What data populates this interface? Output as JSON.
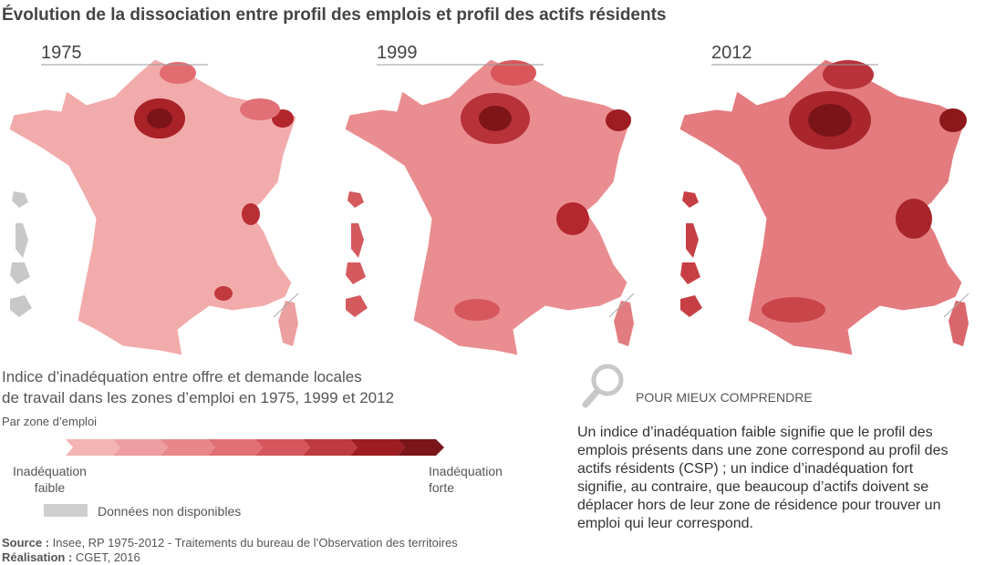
{
  "title": "Évolution de la dissociation entre profil des emplois et profil des actifs résidents",
  "maps": [
    {
      "year": "1975"
    },
    {
      "year": "1999"
    },
    {
      "year": "2012"
    }
  ],
  "legend": {
    "title_lines": [
      "Indice d’inadéquation entre offre et demande locales",
      "de travail dans les zones d’emploi en 1975, 1999 et 2012"
    ],
    "subtitle": "Par zone d’emploi",
    "low_label": [
      "Inadéquation",
      "faible"
    ],
    "high_label": [
      "Inadéquation",
      "forte"
    ],
    "na_label": "Données non disponibles"
  },
  "explainer": {
    "heading": "POUR MIEUX COMPRENDRE",
    "text": "Un indice d’inadéquation faible signifie que le profil des emplois présents dans une zone correspond au profil des actifs résidents (CSP) ; un indice d’inadéquation fort signifie, au contraire, que beaucoup d’actifs doivent se déplacer hors de leur zone de résidence pour trouver un emploi qui leur correspond."
  },
  "footer": {
    "source_label": "Source :",
    "source": "Insee, RP 1975-2012 - Traitements du bureau de l’Observation des territoires",
    "credit_label": "Réalisation :",
    "credit": "CGET, 2016"
  }
}
